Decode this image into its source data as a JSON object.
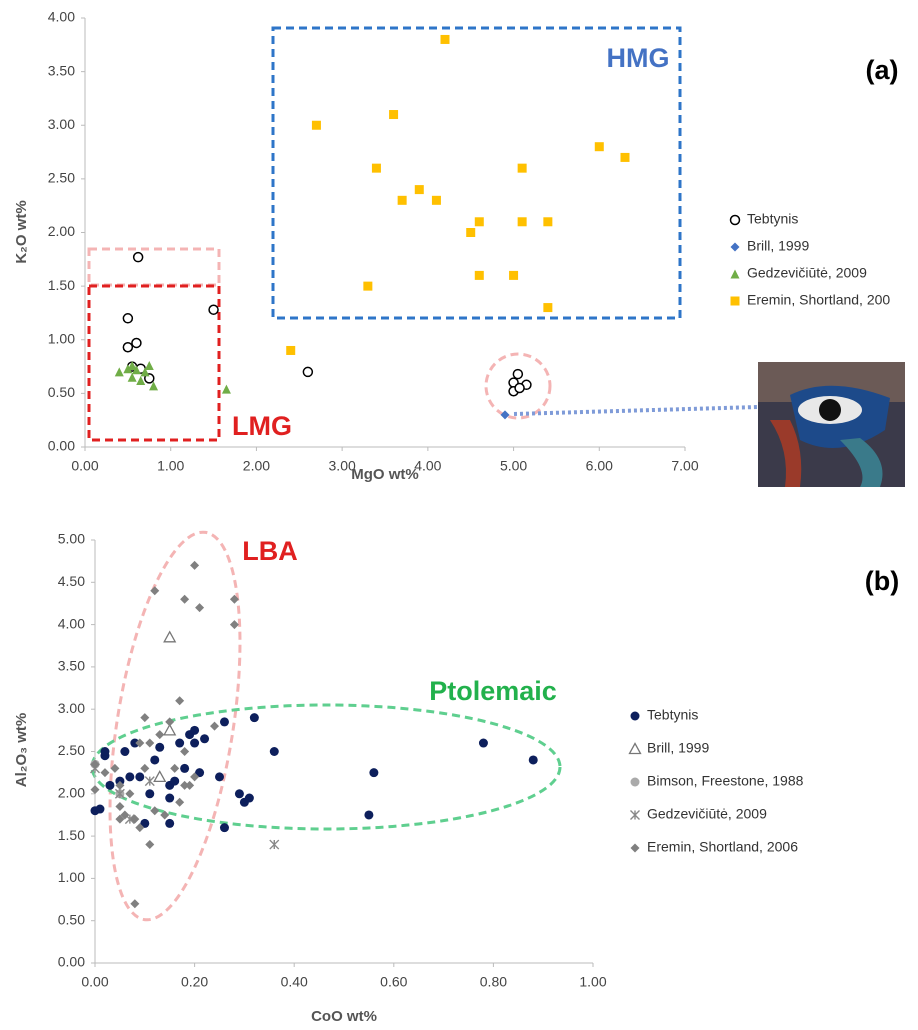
{
  "chart_data": [
    {
      "type": "scatter",
      "x_label": "MgO wt%",
      "y_label": "K₂O wt%",
      "grid": false,
      "legend": "right",
      "xlim": [
        0,
        7
      ],
      "ylim": [
        0,
        4
      ],
      "xticks": [
        {
          "value": 0,
          "label": "0.00"
        },
        {
          "value": 1,
          "label": "1.00"
        },
        {
          "value": 2,
          "label": "2.00"
        },
        {
          "value": 3,
          "label": "3.00"
        },
        {
          "value": 4,
          "label": "4.00"
        },
        {
          "value": 5,
          "label": "5.00"
        },
        {
          "value": 6,
          "label": "6.00"
        },
        {
          "value": 7,
          "label": "7.00"
        }
      ],
      "yticks": [
        {
          "value": 0,
          "label": "0.00"
        },
        {
          "value": 0.5,
          "label": "0.50"
        },
        {
          "value": 1,
          "label": "1.00"
        },
        {
          "value": 1.5,
          "label": "1.50"
        },
        {
          "value": 2,
          "label": "2.00"
        },
        {
          "value": 2.5,
          "label": "2.50"
        },
        {
          "value": 3,
          "label": "3.00"
        },
        {
          "value": 3.5,
          "label": "3.50"
        },
        {
          "value": 4,
          "label": "4.00"
        }
      ],
      "annotations": [
        {
          "text": "HMG",
          "color": "#4472c4"
        },
        {
          "text": "LMG",
          "color": "#e02020"
        },
        {
          "text": "(a)",
          "color": "#000000"
        }
      ],
      "series": [
        {
          "name": "Tebtynis",
          "color": "#000000",
          "marker": "circle-open",
          "x": [
            0.62,
            0.5,
            1.5,
            0.5,
            0.6,
            0.55,
            0.65,
            0.75,
            2.6,
            5.0,
            5.05,
            5.15,
            5.0,
            5.07
          ],
          "y": [
            1.77,
            1.2,
            1.28,
            0.93,
            0.97,
            0.75,
            0.73,
            0.64,
            0.7,
            0.6,
            0.68,
            0.58,
            0.52,
            0.55
          ]
        },
        {
          "name": "Brill, 1999",
          "color": "#4472c4",
          "marker": "diamond",
          "x": [
            4.9
          ],
          "y": [
            0.3
          ]
        },
        {
          "name": "Gedzevičiūtė, 2009",
          "color": "#70ad47",
          "marker": "triangle",
          "x": [
            0.4,
            0.5,
            0.55,
            0.6,
            0.65,
            0.7,
            0.75,
            0.8,
            0.55,
            1.65
          ],
          "y": [
            0.7,
            0.73,
            0.76,
            0.72,
            0.62,
            0.7,
            0.76,
            0.57,
            0.65,
            0.54
          ]
        },
        {
          "name": "Eremin, Shortland, 200",
          "color": "#ffc000",
          "marker": "square",
          "x": [
            4.2,
            2.7,
            3.6,
            3.4,
            3.9,
            3.7,
            4.1,
            4.5,
            4.6,
            5.1,
            5.1,
            5.4,
            6.0,
            6.3,
            4.6,
            5.0,
            3.3,
            5.4,
            2.4
          ],
          "y": [
            3.8,
            3.0,
            3.1,
            2.6,
            2.4,
            2.3,
            2.3,
            2.0,
            2.1,
            2.6,
            2.1,
            2.1,
            2.8,
            2.7,
            1.6,
            1.6,
            1.5,
            1.3,
            0.9
          ]
        }
      ]
    },
    {
      "type": "scatter",
      "x_label": "CoO wt%",
      "y_label": "Al₂O₃ wt%",
      "grid": false,
      "legend": "right",
      "xlim": [
        0,
        1
      ],
      "ylim": [
        0,
        5
      ],
      "xticks": [
        {
          "value": 0,
          "label": "0.00"
        },
        {
          "value": 0.2,
          "label": "0.20"
        },
        {
          "value": 0.4,
          "label": "0.40"
        },
        {
          "value": 0.6,
          "label": "0.60"
        },
        {
          "value": 0.8,
          "label": "0.80"
        },
        {
          "value": 1,
          "label": "1.00"
        }
      ],
      "yticks": [
        {
          "value": 0,
          "label": "0.00"
        },
        {
          "value": 0.5,
          "label": "0.50"
        },
        {
          "value": 1,
          "label": "1.00"
        },
        {
          "value": 1.5,
          "label": "1.50"
        },
        {
          "value": 2,
          "label": "2.00"
        },
        {
          "value": 2.5,
          "label": "2.50"
        },
        {
          "value": 3,
          "label": "3.00"
        },
        {
          "value": 3.5,
          "label": "3.50"
        },
        {
          "value": 4,
          "label": "4.00"
        },
        {
          "value": 4.5,
          "label": "4.50"
        },
        {
          "value": 5,
          "label": "5.00"
        }
      ],
      "annotations": [
        {
          "text": "LBA",
          "color": "#e02020"
        },
        {
          "text": "Ptolemaic",
          "color": "#22b14c"
        },
        {
          "text": "(b)",
          "color": "#000000"
        }
      ],
      "series": [
        {
          "name": "Tebtynis",
          "color": "#0d1f5c",
          "marker": "circle",
          "x": [
            0.0,
            0.01,
            0.02,
            0.02,
            0.03,
            0.05,
            0.06,
            0.07,
            0.08,
            0.09,
            0.1,
            0.11,
            0.12,
            0.13,
            0.15,
            0.15,
            0.16,
            0.17,
            0.18,
            0.19,
            0.2,
            0.2,
            0.21,
            0.22,
            0.25,
            0.26,
            0.26,
            0.29,
            0.3,
            0.31,
            0.32,
            0.36,
            0.55,
            0.56,
            0.78,
            0.88,
            0.15
          ],
          "y": [
            1.8,
            1.82,
            2.45,
            2.5,
            2.1,
            2.15,
            2.5,
            2.2,
            2.6,
            2.2,
            1.65,
            2.0,
            2.4,
            2.55,
            2.1,
            1.95,
            2.15,
            2.6,
            2.3,
            2.7,
            2.75,
            2.6,
            2.25,
            2.65,
            2.2,
            2.85,
            1.6,
            2.0,
            1.9,
            1.95,
            2.9,
            2.5,
            1.75,
            2.25,
            2.6,
            2.4,
            1.65
          ]
        },
        {
          "name": "Brill, 1999",
          "color": "#777777",
          "marker": "triangle-open",
          "x": [
            0.15,
            0.15,
            0.13
          ],
          "y": [
            3.85,
            2.75,
            2.2
          ]
        },
        {
          "name": "Bimson, Freestone, 1988",
          "color": "#aaaaaa",
          "marker": "circle",
          "x": [
            0.0,
            0.05
          ],
          "y": [
            2.35,
            2.0
          ]
        },
        {
          "name": "Gedzevičiūtė, 2009",
          "color": "#888888",
          "marker": "asterisk",
          "x": [
            0.0,
            0.05,
            0.11,
            0.36,
            0.07
          ],
          "y": [
            2.3,
            2.0,
            2.15,
            1.4,
            1.7
          ]
        },
        {
          "name": "Eremin, Shortland, 2006",
          "color": "#808080",
          "marker": "diamond",
          "x": [
            0.12,
            0.2,
            0.18,
            0.21,
            0.28,
            0.28,
            0.17,
            0.1,
            0.15,
            0.24,
            0.02,
            0.0,
            0.05,
            0.05,
            0.06,
            0.05,
            0.08,
            0.09,
            0.1,
            0.09,
            0.11,
            0.12,
            0.14,
            0.16,
            0.18,
            0.19,
            0.2,
            0.11,
            0.08,
            0.17,
            0.0,
            0.04,
            0.07,
            0.13,
            0.18
          ],
          "y": [
            4.4,
            4.7,
            4.3,
            4.2,
            4.3,
            4.0,
            3.1,
            2.9,
            2.85,
            2.8,
            2.25,
            2.35,
            2.1,
            1.85,
            1.75,
            1.7,
            1.7,
            1.6,
            2.3,
            2.6,
            2.6,
            1.8,
            1.75,
            2.3,
            2.5,
            2.1,
            2.2,
            1.4,
            0.7,
            1.9,
            2.05,
            2.3,
            2.0,
            2.7,
            2.1
          ]
        }
      ]
    }
  ]
}
